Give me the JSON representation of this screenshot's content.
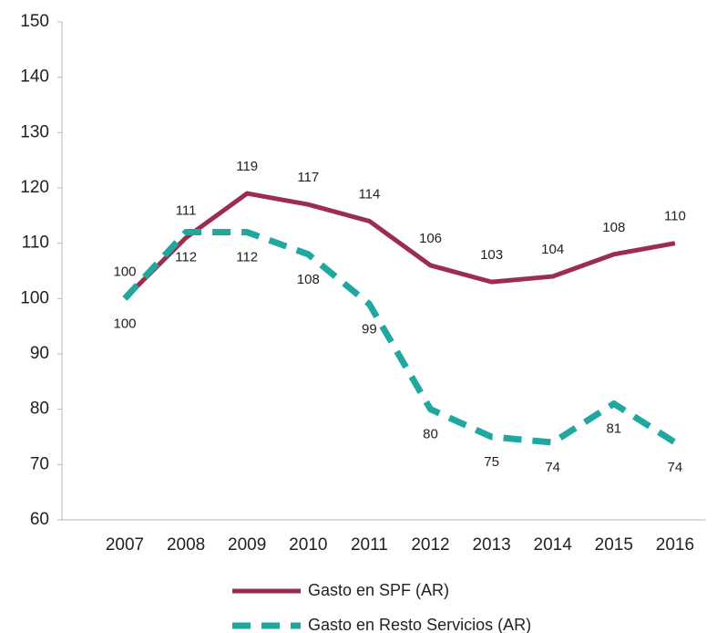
{
  "chart_data": {
    "type": "line",
    "categories": [
      "2007",
      "2008",
      "2009",
      "2010",
      "2011",
      "2012",
      "2013",
      "2014",
      "2015",
      "2016"
    ],
    "series": [
      {
        "name": "Gasto en SPF (AR)",
        "color": "#9b2d4f",
        "dash": false,
        "label_side": "above",
        "values": [
          100,
          111,
          119,
          117,
          114,
          106,
          103,
          104,
          108,
          110
        ]
      },
      {
        "name": "Gasto en Resto Servicios (AR)",
        "color": "#1fa7a0",
        "dash": true,
        "label_side": "below",
        "values": [
          100,
          112,
          112,
          108,
          99,
          80,
          75,
          74,
          81,
          74
        ]
      }
    ],
    "ylim": [
      60,
      150
    ],
    "yticks": [
      60,
      70,
      80,
      90,
      100,
      110,
      120,
      130,
      140,
      150
    ],
    "grid": false
  }
}
